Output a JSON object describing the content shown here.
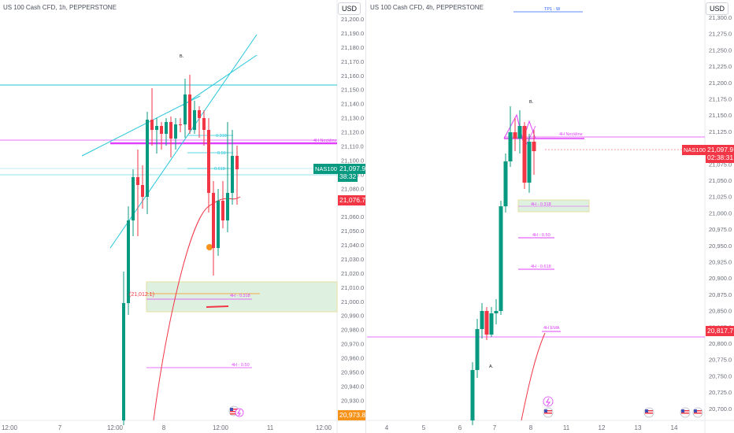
{
  "left": {
    "symbol": "US 100 Cash CFD, 1h, PEPPERSTONE",
    "currency": "USD",
    "price_ticks": [
      "21,200.0",
      "21,190.0",
      "21,180.0",
      "21,170.0",
      "21,160.0",
      "21,150.0",
      "21,140.0",
      "21,130.0",
      "21,120.0",
      "21,110.0",
      "21,100.0",
      "21,090.0",
      "21,080.0",
      "21,070.0",
      "21,060.0",
      "21,050.0",
      "21,040.0",
      "21,030.0",
      "21,020.0",
      "21,010.0",
      "21,000.0",
      "20,990.0",
      "20,980.0",
      "20,970.0",
      "20,960.0",
      "20,950.0",
      "20,940.0",
      "20,930.0"
    ],
    "time_ticks": [
      "12:00",
      "7",
      "12:00",
      "8",
      "12:00",
      "11",
      "12:00"
    ],
    "last_price": {
      "symbol": "NAS100",
      "price": "21,097.9",
      "countdown": "38:32",
      "color": "#089981"
    },
    "ema_tag": {
      "value": "21,076.7",
      "color": "#f23645"
    },
    "low_tag": {
      "value": "20,973.8",
      "color": "#f7931a"
    },
    "annotations": {
      "b": "B.",
      "neckline": "4H Neckline",
      "fib_a": "0.318",
      "fib_b": "0.50",
      "fib_c": "0.618",
      "zone_price": "(21,012.1)",
      "zone_label": "4H - 0.318",
      "half": "4H - 0.50"
    }
  },
  "right": {
    "symbol": "US 100 Cash CFD, 4h, PEPPERSTONE",
    "currency": "USD",
    "price_ticks": [
      "21,300.0",
      "21,275.0",
      "21,250.0",
      "21,225.0",
      "21,200.0",
      "21,175.0",
      "21,150.0",
      "21,125.0",
      "21,100.0",
      "21,075.0",
      "21,050.0",
      "21,025.0",
      "21,000.0",
      "20,975.0",
      "20,950.0",
      "20,925.0",
      "20,900.0",
      "20,875.0",
      "20,850.0",
      "20,825.0",
      "20,800.0",
      "20,775.0",
      "20,750.0",
      "20,725.0",
      "20,700.0"
    ],
    "time_ticks": [
      "4",
      "5",
      "6",
      "7",
      "8",
      "11",
      "12",
      "13",
      "14"
    ],
    "last_price": {
      "symbol": "NAS100",
      "price": "21,097.9",
      "countdown": "02:38:31",
      "color": "#f23645"
    },
    "ema_tag": {
      "value": "20,817.7",
      "color": "#f23645"
    },
    "annotations": {
      "tp": "TP1 - W",
      "b": "B.",
      "a": "A.",
      "neckline": "4H Neckline",
      "f318": "4H - 0.318",
      "f50": "4H - 0.50",
      "f618": "4H - 0.618",
      "ema": "4H EMA"
    }
  },
  "colors": {
    "up": "#089981",
    "down": "#f23645",
    "neck": "#e040fb",
    "cyan": "#26c6da"
  }
}
